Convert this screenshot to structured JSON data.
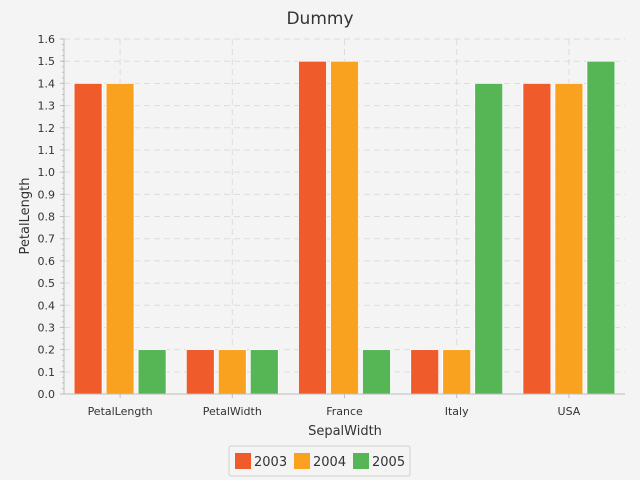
{
  "chart_data": {
    "type": "bar",
    "title": "Dummy",
    "xlabel": "SepalWidth",
    "ylabel": "PetalLength",
    "categories": [
      "PetalLength",
      "PetalWidth",
      "France",
      "Italy",
      "USA"
    ],
    "series": [
      {
        "name": "2003",
        "color": "#f05b2c",
        "values": [
          1.4,
          0.2,
          1.5,
          0.2,
          1.4
        ]
      },
      {
        "name": "2004",
        "color": "#f9a21f",
        "values": [
          1.4,
          0.2,
          1.5,
          0.2,
          1.4
        ]
      },
      {
        "name": "2005",
        "color": "#56b554",
        "values": [
          0.2,
          0.2,
          0.2,
          1.4,
          1.5
        ]
      }
    ],
    "ylim": [
      0,
      1.6
    ],
    "yticks": [
      "0.0",
      "0.1",
      "0.2",
      "0.3",
      "0.4",
      "0.5",
      "0.6",
      "0.7",
      "0.8",
      "0.9",
      "1.0",
      "1.1",
      "1.2",
      "1.3",
      "1.4",
      "1.5",
      "1.6"
    ],
    "grid": true,
    "legend_position": "bottom"
  }
}
